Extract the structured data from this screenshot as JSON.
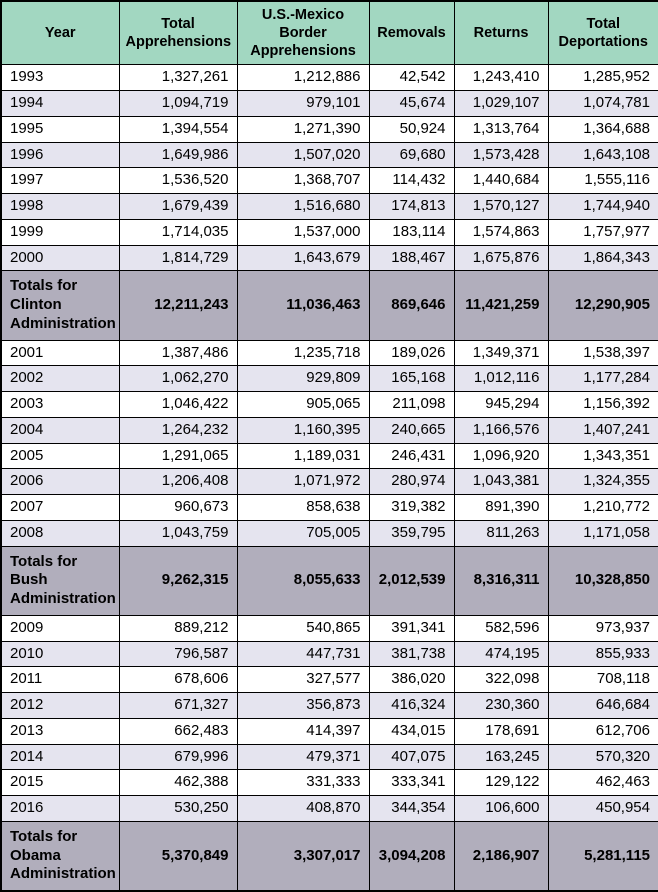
{
  "chart_data": {
    "type": "table",
    "columns": [
      "Year",
      "Total Apprehensions",
      "U.S.-Mexico Border Apprehensions",
      "Removals",
      "Returns",
      "Total Deportations"
    ],
    "rows": [
      {
        "kind": "data",
        "cells": [
          "1993",
          "1,327,261",
          "1,212,886",
          "42,542",
          "1,243,410",
          "1,285,952"
        ]
      },
      {
        "kind": "data",
        "cells": [
          "1994",
          "1,094,719",
          "979,101",
          "45,674",
          "1,029,107",
          "1,074,781"
        ]
      },
      {
        "kind": "data",
        "cells": [
          "1995",
          "1,394,554",
          "1,271,390",
          "50,924",
          "1,313,764",
          "1,364,688"
        ]
      },
      {
        "kind": "data",
        "cells": [
          "1996",
          "1,649,986",
          "1,507,020",
          "69,680",
          "1,573,428",
          "1,643,108"
        ]
      },
      {
        "kind": "data",
        "cells": [
          "1997",
          "1,536,520",
          "1,368,707",
          "114,432",
          "1,440,684",
          "1,555,116"
        ]
      },
      {
        "kind": "data",
        "cells": [
          "1998",
          "1,679,439",
          "1,516,680",
          "174,813",
          "1,570,127",
          "1,744,940"
        ]
      },
      {
        "kind": "data",
        "cells": [
          "1999",
          "1,714,035",
          "1,537,000",
          "183,114",
          "1,574,863",
          "1,757,977"
        ]
      },
      {
        "kind": "data",
        "cells": [
          "2000",
          "1,814,729",
          "1,643,679",
          "188,467",
          "1,675,876",
          "1,864,343"
        ]
      },
      {
        "kind": "total",
        "cells": [
          "Totals for Clinton Administration",
          "12,211,243",
          "11,036,463",
          "869,646",
          "11,421,259",
          "12,290,905"
        ]
      },
      {
        "kind": "data",
        "cells": [
          "2001",
          "1,387,486",
          "1,235,718",
          "189,026",
          "1,349,371",
          "1,538,397"
        ]
      },
      {
        "kind": "data",
        "cells": [
          "2002",
          "1,062,270",
          "929,809",
          "165,168",
          "1,012,116",
          "1,177,284"
        ]
      },
      {
        "kind": "data",
        "cells": [
          "2003",
          "1,046,422",
          "905,065",
          "211,098",
          "945,294",
          "1,156,392"
        ]
      },
      {
        "kind": "data",
        "cells": [
          "2004",
          "1,264,232",
          "1,160,395",
          "240,665",
          "1,166,576",
          "1,407,241"
        ]
      },
      {
        "kind": "data",
        "cells": [
          "2005",
          "1,291,065",
          "1,189,031",
          "246,431",
          "1,096,920",
          "1,343,351"
        ]
      },
      {
        "kind": "data",
        "cells": [
          "2006",
          "1,206,408",
          "1,071,972",
          "280,974",
          "1,043,381",
          "1,324,355"
        ]
      },
      {
        "kind": "data",
        "cells": [
          "2007",
          "960,673",
          "858,638",
          "319,382",
          "891,390",
          "1,210,772"
        ]
      },
      {
        "kind": "data",
        "cells": [
          "2008",
          "1,043,759",
          "705,005",
          "359,795",
          "811,263",
          "1,171,058"
        ]
      },
      {
        "kind": "total",
        "cells": [
          "Totals for Bush Administration",
          "9,262,315",
          "8,055,633",
          "2,012,539",
          "8,316,311",
          "10,328,850"
        ]
      },
      {
        "kind": "data",
        "cells": [
          "2009",
          "889,212",
          "540,865",
          "391,341",
          "582,596",
          "973,937"
        ]
      },
      {
        "kind": "data",
        "cells": [
          "2010",
          "796,587",
          "447,731",
          "381,738",
          "474,195",
          "855,933"
        ]
      },
      {
        "kind": "data",
        "cells": [
          "2011",
          "678,606",
          "327,577",
          "386,020",
          "322,098",
          "708,118"
        ]
      },
      {
        "kind": "data",
        "cells": [
          "2012",
          "671,327",
          "356,873",
          "416,324",
          "230,360",
          "646,684"
        ]
      },
      {
        "kind": "data",
        "cells": [
          "2013",
          "662,483",
          "414,397",
          "434,015",
          "178,691",
          "612,706"
        ]
      },
      {
        "kind": "data",
        "cells": [
          "2014",
          "679,996",
          "479,371",
          "407,075",
          "163,245",
          "570,320"
        ]
      },
      {
        "kind": "data",
        "cells": [
          "2015",
          "462,388",
          "331,333",
          "333,341",
          "129,122",
          "462,463"
        ]
      },
      {
        "kind": "data",
        "cells": [
          "2016",
          "530,250",
          "408,870",
          "344,354",
          "106,600",
          "450,954"
        ]
      },
      {
        "kind": "total",
        "cells": [
          "Totals for Obama Administration",
          "5,370,849",
          "3,307,017",
          "3,094,208",
          "2,186,907",
          "5,281,115"
        ]
      }
    ]
  },
  "colors": {
    "header_bg": "#a2d7c1",
    "alt_row_bg": "#e5e4ef",
    "totals_row_bg": "#b1aebc",
    "border": "#000000"
  }
}
